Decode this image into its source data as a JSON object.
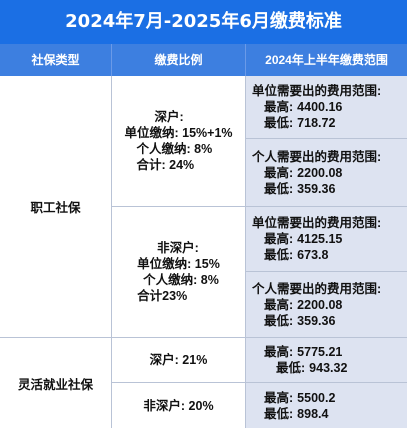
{
  "title": "2024年7月-2025年6月缴费标准",
  "headers": {
    "type": "社保类型",
    "ratio": "缴费比例",
    "range": "2024年上半年缴费范围"
  },
  "employee": {
    "type": "职工社保",
    "shenzhen": {
      "line1": "深户:",
      "line2": "单位缴纳: 15%+1%",
      "line3": "个人缴纳: 8%",
      "line4": "合计: 24%",
      "unit_range": {
        "head": "单位需要出的费用范围:",
        "max_label": "最高:",
        "max": "4400.16",
        "min_label": "最低:",
        "min": "718.72"
      },
      "personal_range": {
        "head": "个人需要出的费用范围:",
        "max_label": "最高:",
        "max": "2200.08",
        "min_label": "最低:",
        "min": "359.36"
      }
    },
    "non_shenzhen": {
      "line1": "非深户:",
      "line2": "单位缴纳: 15%",
      "line3": "个人缴纳: 8%",
      "line4": "合计23%",
      "unit_range": {
        "head": "单位需要出的费用范围:",
        "max_label": "最高:",
        "max": "4125.15",
        "min_label": "最低:",
        "min": "673.8"
      },
      "personal_range": {
        "head": "个人需要出的费用范围:",
        "max_label": "最高:",
        "max": "2200.08",
        "min_label": "最低:",
        "min": "359.36"
      }
    }
  },
  "flexible": {
    "type": "灵活就业社保",
    "shenzhen": {
      "ratio": "深户: 21%",
      "max_label": "最高:",
      "max": "5775.21",
      "min_label": "最低:",
      "min": "943.32"
    },
    "non_shenzhen": {
      "ratio": "非深户: 20%",
      "max_label": "最高:",
      "max": "5500.2",
      "min_label": "最低:",
      "min": "898.4"
    }
  },
  "colors": {
    "title_bg": "#1b6fe4",
    "header_bg": "#3d7fe0",
    "range_bg": "#dde3f1",
    "border": "#b9c3d6"
  }
}
